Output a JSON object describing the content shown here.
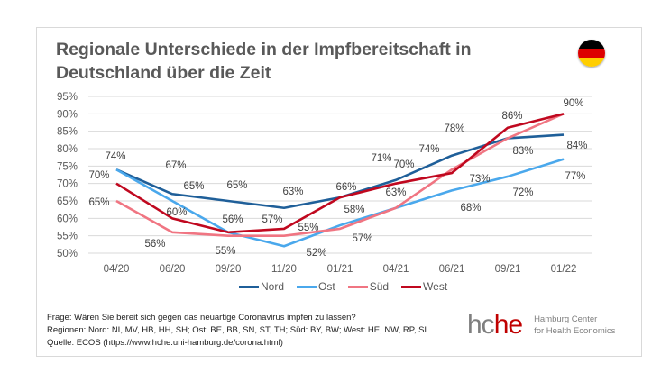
{
  "title": "Regionale Unterschiede in der Impfbereitschaft in Deutschland über die Zeit",
  "flag_icon": "germany-flag-icon",
  "flag_colors": [
    "#000000",
    "#dd0000",
    "#ffce00"
  ],
  "chart_data": {
    "type": "line",
    "title": "Regionale Unterschiede in der Impfbereitschaft in Deutschland über die Zeit",
    "xlabel": "",
    "ylabel": "",
    "categories": [
      "04/20",
      "06/20",
      "09/20",
      "11/20",
      "01/21",
      "04/21",
      "06/21",
      "09/21",
      "01/22"
    ],
    "yticks": [
      "50%",
      "55%",
      "60%",
      "65%",
      "70%",
      "75%",
      "80%",
      "85%",
      "90%",
      "95%"
    ],
    "ylim": [
      50,
      95
    ],
    "grid": true,
    "legend_position": "bottom",
    "series": [
      {
        "name": "Nord",
        "color": "#1f5f99",
        "values": [
          74,
          67,
          65,
          63,
          66,
          71,
          78,
          83,
          84
        ],
        "labels": [
          null,
          "67%",
          "65%",
          "63%",
          "66%",
          "71%",
          "78%",
          "83%",
          "84%"
        ]
      },
      {
        "name": "Ost",
        "color": "#4aa8ec",
        "values": [
          74,
          65,
          56,
          52,
          58,
          63,
          68,
          72,
          77
        ],
        "labels": [
          "74%",
          "65%",
          null,
          "52%",
          "58%",
          "63%",
          "68%",
          "72%",
          "77%"
        ]
      },
      {
        "name": "Süd",
        "color": "#f07582",
        "values": [
          65,
          56,
          55,
          55,
          57,
          63,
          74,
          83,
          90
        ],
        "labels": [
          "65%",
          "56%",
          "55%",
          "55%",
          "57%",
          null,
          "74%",
          null,
          null
        ]
      },
      {
        "name": "West",
        "color": "#c0081f",
        "values": [
          70,
          60,
          56,
          57,
          66,
          70,
          73,
          86,
          90
        ],
        "labels": [
          "70%",
          "60%",
          "56%",
          "57%",
          null,
          "70%",
          "73%",
          "86%",
          "90%"
        ]
      }
    ]
  },
  "footer": {
    "question": "Frage: Wären Sie bereit sich gegen das neuartige Coronavirus impfen zu lassen?",
    "regions": "Regionen: Nord: NI, MV, HB, HH, SH; Ost: BE, BB, SN, ST, TH; Süd: BY, BW; West: HE, NW, RP, SL",
    "source": "Quelle: ECOS (https://www.hche.uni-hamburg.de/corona.html)"
  },
  "logo": {
    "part1": "hc",
    "part2": "he",
    "line1": "Hamburg Center",
    "line2": "for Health Economics"
  }
}
